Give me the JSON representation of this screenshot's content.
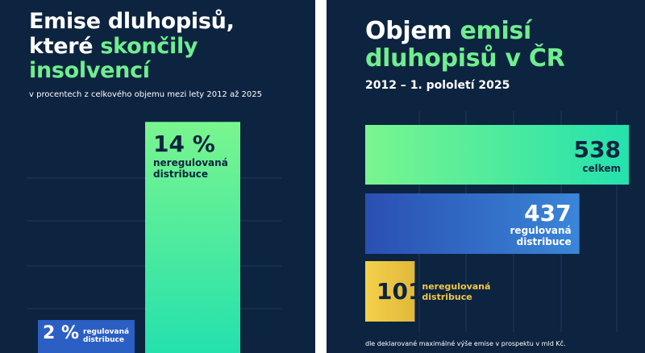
{
  "left": {
    "title_line1": "Emise dluhopisů,",
    "title_line2_a": "které ",
    "title_line2_b": "skončily",
    "title_line3": "insolvencí",
    "subtitle": "v procentech z celkového objemu mezi lety 2012 až 2025"
  },
  "right": {
    "title_a": "Objem ",
    "title_b": "emisí",
    "title_c": "dluhopisů v ČR",
    "subtitle": "2012 – 1. pololetí 2025",
    "footnote": "dle deklarované maximálné výše emise  v prospektu v mld Kč."
  },
  "colors": {
    "background": "#0d2440",
    "accent": "#6fee8f",
    "green_bar_top": "#7af58e",
    "green_bar_bottom": "#24e1ad",
    "blue_bar": "#2b5fc4",
    "yellow_bar": "#f2c846",
    "yellow_text": "#f2c846",
    "dark_text": "#0d2440"
  },
  "chart_data": [
    {
      "type": "bar",
      "orientation": "vertical",
      "unit": "%",
      "categories": [
        "regulovaná distribuce",
        "neregulovaná distribuce"
      ],
      "values": [
        2,
        14
      ],
      "value_labels": [
        "2 %",
        "14 %"
      ],
      "category_labels": [
        "regulovaná\ndistribuce",
        "neregulovaná\ndistribuce"
      ],
      "ylim": [
        0,
        14.5
      ],
      "grid": true
    },
    {
      "type": "bar",
      "orientation": "horizontal",
      "categories": [
        "celkem",
        "regulovaná distribuce",
        "neregulovaná distribuce"
      ],
      "values": [
        538,
        437,
        101
      ],
      "value_labels": [
        "538",
        "437",
        "101"
      ],
      "category_labels": [
        "celkem",
        "regulovaná\ndistribuce",
        "neregulovaná\ndistribuce"
      ],
      "xlim": [
        0,
        600
      ],
      "grid": true
    }
  ]
}
